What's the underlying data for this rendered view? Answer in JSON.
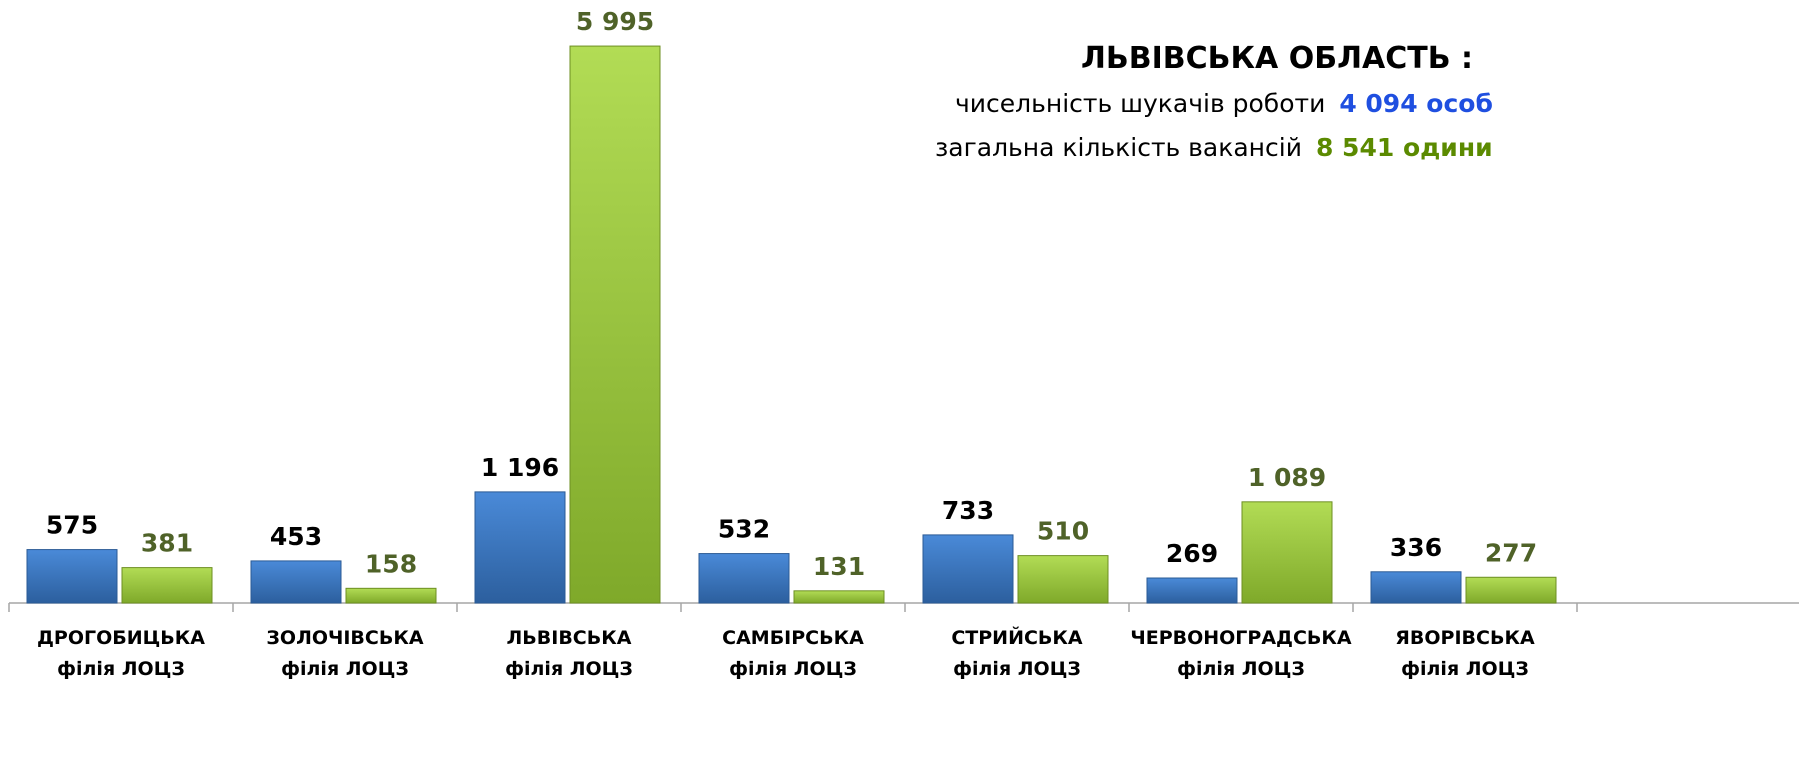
{
  "chart_data": {
    "type": "bar",
    "title": "ЛЬВІВСЬКА ОБЛАСТЬ :",
    "annotations": [
      {
        "text": "чисельність шукачів роботи",
        "highlight": "4 094 особ",
        "color": "#1f4fe0"
      },
      {
        "text": "загальна кількість вакансій",
        "highlight": "8 541 одини",
        "color": "#5b8a00"
      }
    ],
    "categories": [
      [
        "ДРОГОБИЦЬКА",
        "філія ЛОЦЗ"
      ],
      [
        "ЗОЛОЧІВСЬКА",
        "філія ЛОЦЗ"
      ],
      [
        "ЛЬВІВСЬКА",
        "філія ЛОЦЗ"
      ],
      [
        "САМБІРСЬКА",
        "філія ЛОЦЗ"
      ],
      [
        "СТРИЙСЬКА",
        "філія ЛОЦЗ"
      ],
      [
        "ЧЕРВОНОГРАДСЬКА",
        "філія ЛОЦЗ"
      ],
      [
        "ЯВОРІВСЬКА",
        "філія ЛОЦЗ"
      ]
    ],
    "series": [
      {
        "color": "#3b7bc9",
        "label_color": "#000000",
        "values": [
          575,
          453,
          1196,
          532,
          733,
          269,
          336
        ],
        "value_labels": [
          "575",
          "453",
          "1 196",
          "532",
          "733",
          "269",
          "336"
        ]
      },
      {
        "color": "#9ccb3d",
        "label_color": "#4f6228",
        "values": [
          381,
          158,
          5995,
          131,
          510,
          1089,
          277
        ],
        "value_labels": [
          "381",
          "158",
          "5 995",
          "131",
          "510",
          "1 089",
          "277"
        ]
      }
    ],
    "ylim": [
      0,
      6000
    ]
  }
}
